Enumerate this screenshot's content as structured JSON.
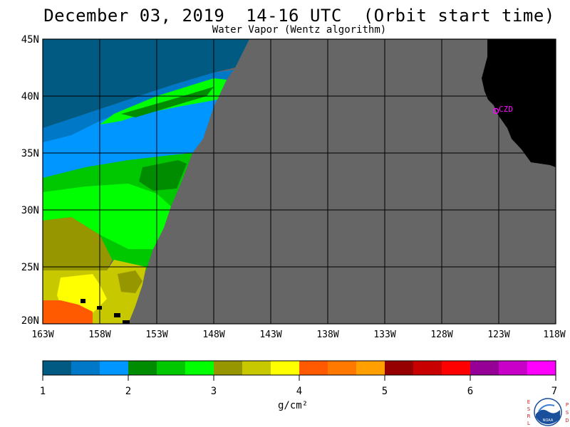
{
  "header": {
    "title": "December 03, 2019  14-16 UTC  (Orbit start time)",
    "subtitle": "Water Vapor (Wentz algorithm)"
  },
  "map": {
    "lat_labels": [
      "45N",
      "40N",
      "35N",
      "30N",
      "25N",
      "20N"
    ],
    "lon_labels": [
      "163W",
      "158W",
      "153W",
      "148W",
      "143W",
      "138W",
      "133W",
      "128W",
      "123W",
      "118W"
    ],
    "station_label": "CZD",
    "colors": {
      "no_data": "#666666",
      "land": "#000000",
      "grid": "#000000",
      "station": "#ff00ff"
    }
  },
  "colorbar": {
    "tick_labels": [
      "1",
      "2",
      "3",
      "4",
      "5",
      "6",
      "7"
    ],
    "units": "g/cm²",
    "colors": [
      "#005a82",
      "#0078c8",
      "#0096ff",
      "#008c00",
      "#00c800",
      "#00ff00",
      "#969600",
      "#c8c800",
      "#ffff00",
      "#ff5a00",
      "#ff7800",
      "#ffa000",
      "#960000",
      "#c80000",
      "#ff0000",
      "#960096",
      "#c800c8",
      "#ff00ff"
    ]
  },
  "logo": {
    "left_letters": [
      "E",
      "S",
      "R",
      "L"
    ],
    "right_letters": [
      "P",
      "S",
      "D"
    ],
    "center_text": "NOAA"
  }
}
